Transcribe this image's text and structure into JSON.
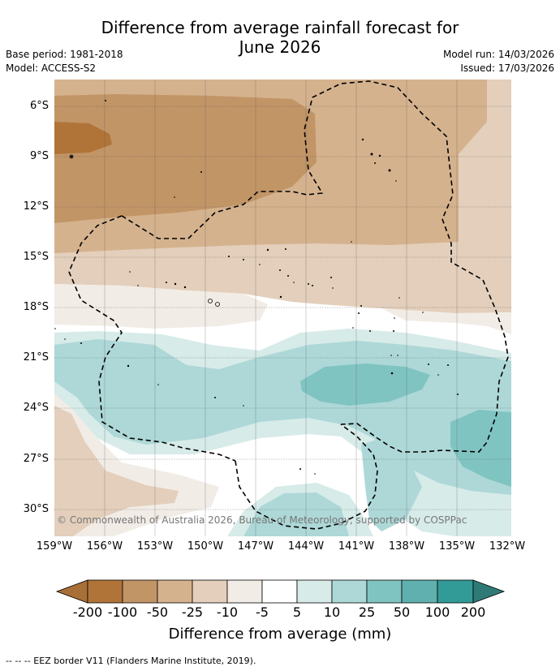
{
  "title": "Difference from average rainfall forecast for June 2026",
  "meta": {
    "base_period": "Base period: 1981-2018",
    "model": "Model: ACCESS-S2",
    "model_run": "Model run: 14/03/2026",
    "issued": "Issued: 17/03/2026"
  },
  "lat_labels": [
    "6°S",
    "9°S",
    "12°S",
    "15°S",
    "18°S",
    "21°S",
    "24°S",
    "27°S",
    "30°S"
  ],
  "lon_labels": [
    "159°W",
    "156°W",
    "153°W",
    "150°W",
    "147°W",
    "144°W",
    "141°W",
    "138°W",
    "135°W",
    "132°W"
  ],
  "copyright": "© Commonwealth of Australia 2026, Bureau of Meteorology, supported by COSPPac",
  "legend": {
    "title": "Difference from average (mm)",
    "tick_labels": [
      "-200",
      "-100",
      "-50",
      "-25",
      "-10",
      "-5",
      "5",
      "10",
      "25",
      "50",
      "100",
      "200"
    ],
    "colors": {
      "below_200": "#a86f36",
      "m200_m100": "#b07439",
      "m100_m50": "#c29567",
      "m50_m25": "#d5b28e",
      "m25_m10": "#e3cfbb",
      "m10_m5": "#f2ece6",
      "m5_5": "#ffffff",
      "p5_p10": "#d7ebe9",
      "p10_p25": "#add8d7",
      "p25_p50": "#80c4c2",
      "p50_p100": "#5fb0ae",
      "p100_p200": "#339b97",
      "above_200": "#2f7a77"
    }
  },
  "footnote": "-- -- -- EEZ border V11 (Flanders Marine Institute, 2019)."
}
